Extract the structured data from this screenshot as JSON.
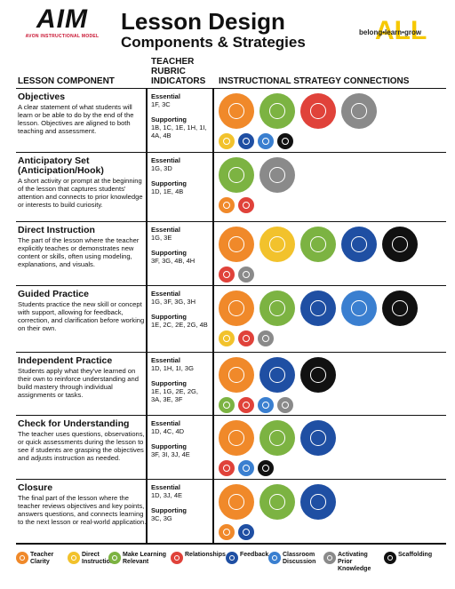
{
  "header": {
    "logo_text": "AIM",
    "logo_subtitle": "AVON INSTRUCTIONAL MODEL",
    "title": "Lesson Design",
    "subtitle": "Components & Strategies",
    "tagline": "belong•learn•grow",
    "tagline_accent": "ALL"
  },
  "columns": [
    "LESSON COMPONENT",
    "TEACHER RUBRIC INDICATORS",
    "INSTRUCTIONAL STRATEGY CONNECTIONS"
  ],
  "rows": [
    {
      "name": "Objectives",
      "description": "A clear statement of what students will learn or be able to do by the end of the lesson. Objectives are aligned to both teaching and assessment.",
      "essential_label": "Essential",
      "essential": "1F, 3C",
      "supporting_label": "Supporting",
      "supporting": "1B, 1C, 1E, 1H, 1I, 4A, 4B"
    },
    {
      "name": "Anticipatory Set (Anticipation/Hook)",
      "description": "A short activity or prompt at the beginning of the lesson that captures students' attention and connects to prior knowledge or interests to build curiosity.",
      "essential_label": "Essential",
      "essential": "1G, 3D",
      "supporting_label": "Supporting",
      "supporting": "1D, 1E, 4B"
    },
    {
      "name": "Direct Instruction",
      "description": "The part of the lesson where the teacher explicitly teaches or demonstrates new content or skills, often using modeling, explanations, and visuals.",
      "essential_label": "Essential",
      "essential": "1G, 3E",
      "supporting_label": "Supporting",
      "supporting": "3F, 3G, 4B, 4H"
    },
    {
      "name": "Guided Practice",
      "description": "Students practice the new skill or concept with support, allowing for feedback, correction, and clarification before working on their own.",
      "essential_label": "Essential",
      "essential": "1G, 3F, 3G, 3H",
      "supporting_label": "Supporting",
      "supporting": "1E, 2C, 2E, 2G, 4B"
    },
    {
      "name": "Independent Practice",
      "description": "Students apply what they've learned on their own to reinforce understanding and build mastery through individual assignments or tasks.",
      "essential_label": "Essential",
      "essential": "1D, 1H, 1I, 3G",
      "supporting_label": "Supporting",
      "supporting": "1E, 1G, 2E, 2G, 3A, 3E, 3F"
    },
    {
      "name": "Check for Understanding",
      "description": "The teacher uses questions, observations, or quick assessments during the lesson to see if students are grasping the objectives and adjusts instruction as needed.",
      "essential_label": "Essential",
      "essential": "1D, 4C, 4D",
      "supporting_label": "Supporting",
      "supporting": "3F, 3I, 3J, 4E"
    },
    {
      "name": "Closure",
      "description": "The final part of the lesson where the teacher reviews objectives and key points, answers questions, and connects learning to the next lesson or real-world application.",
      "essential_label": "Essential",
      "essential": "1D, 3J, 4E",
      "supporting_label": "Supporting",
      "supporting": "3C, 3G"
    }
  ],
  "legend": [
    "Teacher Clarity",
    "Direct Instruction",
    "Make Learning Relevant",
    "Relationships",
    "Feedback",
    "Classroom Discussion",
    "Activating Prior Knowledge",
    "Scaffolding"
  ]
}
